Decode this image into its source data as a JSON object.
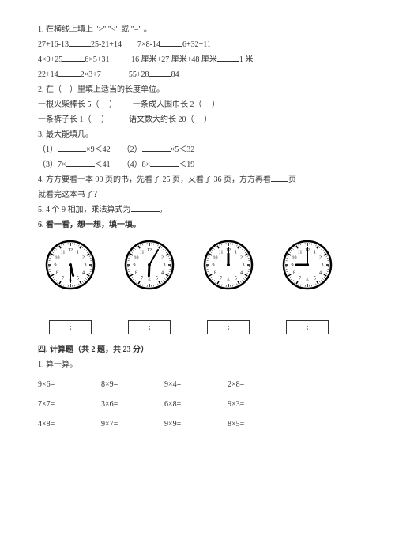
{
  "q1": {
    "title": "1. 在横线上填上 \">\" \"<\" 或 \"=\" 。",
    "row1a": "27+16-13",
    "row1b": "25-21+14",
    "row1c": "7×8-14",
    "row1d": "6+32+11",
    "row2a": "4×9+25",
    "row2b": "6×5+31",
    "row2c": "16 厘米+27 厘米+48 厘米",
    "row2d": "1 米",
    "row3a": "22+14",
    "row3b": "2×3+7",
    "row3c": "55+28",
    "row3d": "84"
  },
  "q2": {
    "title": "2. 在（    ）里填上适当的长度单位。",
    "a": "一根火柴棒长 5（     ）",
    "b": "一条成人围巾长 2（     ）",
    "c": "一条裤子长 1（     ）",
    "d": "语文数大约长 20（     ）"
  },
  "q3": {
    "title": "3. 最大能填几。",
    "a1": "（1）",
    "a2": "×9＜42",
    "b1": "（2）",
    "b2": "×5＜32",
    "c1": "（3）7×",
    "c2": "＜41",
    "d1": "（4）8×",
    "d2": "＜19"
  },
  "q4": {
    "line1a": "4. 方方要看一本 90 页的书，先看了 25 页，又看了 36 页，方方再看",
    "line1b": "页",
    "line2": "就看完这本书了？"
  },
  "q5": {
    "a": "5. 4 个 9 相加，乘法算式为",
    "b": "。"
  },
  "q6": {
    "title": "6. 看一看，想一想，填一填。"
  },
  "clocks": [
    {
      "hour": 5,
      "minute": 30
    },
    {
      "hour": 6,
      "minute": 5
    },
    {
      "hour": 12,
      "minute": 0
    },
    {
      "hour": 9,
      "minute": 0
    }
  ],
  "colon": ":",
  "section4": "四. 计算题（共 2 题，共 23 分）",
  "calc": {
    "title": "1. 算一算。",
    "rows": [
      [
        "9×6=",
        "8×9=",
        "9×4=",
        "2×8="
      ],
      [
        "7×7=",
        "3×6=",
        "6×8=",
        "9×3="
      ],
      [
        "4×8=",
        "9×7=",
        "9×9=",
        "8×5="
      ]
    ]
  }
}
